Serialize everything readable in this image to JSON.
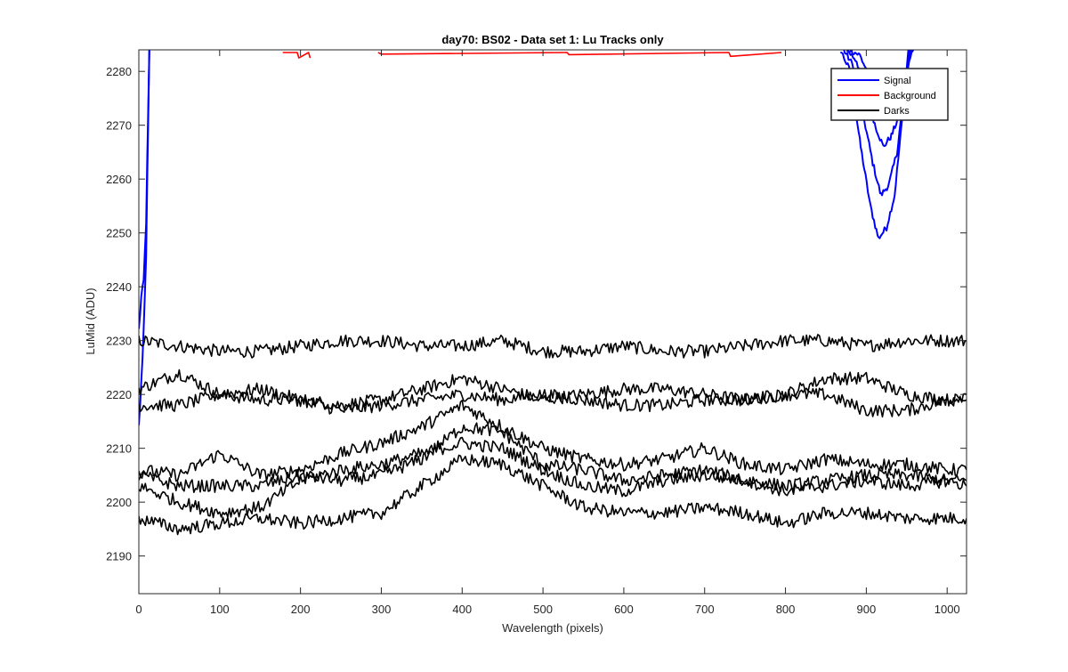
{
  "chart_data": {
    "type": "line",
    "title": "day70: BS02 - Data set 1: Lu Tracks only",
    "xlabel": "Wavelength (pixels)",
    "ylabel": "LuMid (ADU)",
    "xlim": [
      0,
      1024
    ],
    "ylim": [
      2183,
      2284
    ],
    "xticks": [
      0,
      100,
      200,
      300,
      400,
      500,
      600,
      700,
      800,
      900,
      1000
    ],
    "yticks": [
      2190,
      2200,
      2210,
      2220,
      2230,
      2240,
      2250,
      2260,
      2270,
      2280
    ],
    "grid": false,
    "legend_position": "top-right",
    "legend": [
      {
        "label": "Signal",
        "color": "#0000ff"
      },
      {
        "label": "Background",
        "color": "#ff0000"
      },
      {
        "label": "Darks",
        "color": "#000000"
      }
    ],
    "series": [
      {
        "group": "Signal",
        "color": "#0000ff",
        "x": [
          0,
          3,
          6,
          9,
          11,
          13
        ],
        "y": [
          2232,
          2238,
          2241,
          2252,
          2268,
          2284
        ]
      },
      {
        "group": "Signal",
        "color": "#0000ff",
        "x": [
          0,
          3,
          6,
          9,
          11,
          13
        ],
        "y": [
          2214,
          2222,
          2232,
          2246,
          2265,
          2284
        ]
      },
      {
        "group": "Signal",
        "color": "#0000ff",
        "x": [
          868,
          880,
          893,
          905,
          915,
          925,
          935,
          945,
          952
        ],
        "y": [
          2284,
          2280,
          2266,
          2255,
          2249,
          2251,
          2257,
          2272,
          2284
        ]
      },
      {
        "group": "Signal",
        "color": "#0000ff",
        "x": [
          872,
          884,
          896,
          908,
          918,
          928,
          938,
          946,
          954
        ],
        "y": [
          2284,
          2281,
          2272,
          2263,
          2257,
          2259,
          2265,
          2275,
          2284
        ]
      },
      {
        "group": "Signal",
        "color": "#0000ff",
        "x": [
          876,
          888,
          900,
          911,
          921,
          931,
          941,
          948,
          956
        ],
        "y": [
          2284,
          2282,
          2276,
          2270,
          2266,
          2268,
          2272,
          2278,
          2284
        ]
      },
      {
        "group": "Signal",
        "color": "#0000ff",
        "x": [
          880,
          892,
          904,
          914,
          924,
          934,
          944,
          950,
          958
        ],
        "y": [
          2284,
          2283,
          2279,
          2275,
          2272,
          2273,
          2277,
          2280,
          2284
        ]
      },
      {
        "group": "Background",
        "color": "#ff0000",
        "x": [
          178,
          196,
          198,
          210,
          212
        ],
        "y": [
          2283.5,
          2283.5,
          2282.5,
          2283.5,
          2282.5
        ]
      },
      {
        "group": "Background",
        "color": "#ff0000",
        "x": [
          296,
          300,
          530,
          532,
          730,
          732,
          795
        ],
        "y": [
          2283.5,
          2283.2,
          2283.5,
          2283.1,
          2283.5,
          2282.8,
          2283.5
        ]
      },
      {
        "group": "Darks",
        "color": "#000000",
        "x": [
          0,
          50,
          100,
          150,
          200,
          250,
          300,
          350,
          400,
          450,
          500,
          550,
          600,
          650,
          700,
          750,
          800,
          850,
          900,
          950,
          1000,
          1024
        ],
        "y": [
          2230,
          2229,
          2228,
          2228,
          2229,
          2230,
          2230,
          2229,
          2229,
          2230,
          2228,
          2228,
          2229,
          2228,
          2228,
          2229,
          2230,
          2230,
          2229,
          2230,
          2230,
          2230
        ]
      },
      {
        "group": "Darks",
        "color": "#000000",
        "x": [
          0,
          50,
          100,
          150,
          200,
          250,
          300,
          350,
          400,
          450,
          500,
          550,
          600,
          650,
          700,
          750,
          800,
          850,
          900,
          950,
          1000,
          1024
        ],
        "y": [
          2221,
          2224,
          2220,
          2219,
          2219,
          2218,
          2219,
          2221,
          2223,
          2221,
          2219,
          2220,
          2221,
          2221,
          2220,
          2219,
          2220,
          2223,
          2223,
          2220,
          2219,
          2219
        ]
      },
      {
        "group": "Darks",
        "color": "#000000",
        "x": [
          0,
          50,
          100,
          150,
          200,
          250,
          300,
          350,
          400,
          450,
          500,
          550,
          600,
          650,
          700,
          750,
          800,
          850,
          900,
          950,
          1000,
          1024
        ],
        "y": [
          2218,
          2218,
          2220,
          2221,
          2219,
          2217,
          2218,
          2219,
          2220,
          2219,
          2220,
          2219,
          2218,
          2218,
          2219,
          2219,
          2220,
          2220,
          2217,
          2217,
          2219,
          2220
        ]
      },
      {
        "group": "Darks",
        "color": "#000000",
        "x": [
          0,
          50,
          100,
          150,
          200,
          250,
          300,
          350,
          400,
          450,
          500,
          550,
          600,
          650,
          700,
          750,
          800,
          850,
          900,
          950,
          1000,
          1024
        ],
        "y": [
          2206,
          2205,
          2209,
          2205,
          2206,
          2209,
          2211,
          2214,
          2218,
          2214,
          2210,
          2208,
          2207,
          2208,
          2210,
          2207,
          2206,
          2208,
          2207,
          2207,
          2206,
          2206
        ]
      },
      {
        "group": "Darks",
        "color": "#000000",
        "x": [
          0,
          50,
          100,
          150,
          200,
          250,
          300,
          350,
          400,
          450,
          500,
          550,
          600,
          650,
          700,
          750,
          800,
          850,
          900,
          950,
          1000,
          1024
        ],
        "y": [
          2205,
          2203,
          2203,
          2203,
          2205,
          2204,
          2205,
          2208,
          2214,
          2213,
          2207,
          2206,
          2204,
          2205,
          2206,
          2204,
          2203,
          2204,
          2205,
          2205,
          2204,
          2204
        ]
      },
      {
        "group": "Darks",
        "color": "#000000",
        "x": [
          0,
          50,
          100,
          150,
          200,
          250,
          300,
          350,
          400,
          450,
          500,
          550,
          600,
          650,
          700,
          750,
          800,
          850,
          900,
          950,
          1000,
          1024
        ],
        "y": [
          2203,
          2200,
          2198,
          2199,
          2204,
          2206,
          2207,
          2209,
          2211,
          2210,
          2206,
          2203,
          2202,
          2204,
          2205,
          2204,
          2202,
          2203,
          2204,
          2203,
          2204,
          2203
        ]
      },
      {
        "group": "Darks",
        "color": "#000000",
        "x": [
          0,
          50,
          100,
          150,
          200,
          250,
          300,
          350,
          400,
          450,
          500,
          550,
          600,
          650,
          700,
          750,
          800,
          850,
          900,
          950,
          1000,
          1024
        ],
        "y": [
          2197,
          2195,
          2196,
          2197,
          2196,
          2197,
          2198,
          2203,
          2208,
          2207,
          2203,
          2199,
          2198,
          2198,
          2199,
          2198,
          2196,
          2198,
          2198,
          2197,
          2197,
          2197
        ]
      }
    ]
  }
}
